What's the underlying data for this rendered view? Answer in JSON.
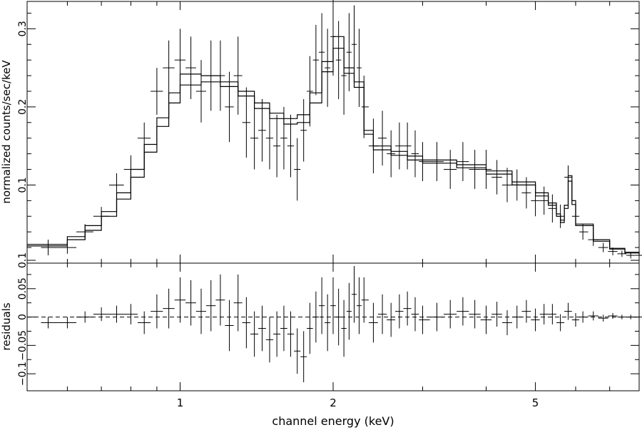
{
  "chart_data": [
    {
      "type": "line",
      "panel": "spectrum",
      "xlabel": "channel energy (keV)",
      "ylabel": "normalized counts/sec/keV",
      "xscale": "log",
      "xlim": [
        0.5,
        8.0
      ],
      "ylim": [
        0.0,
        0.335
      ],
      "yticks": [
        0.1,
        0.2,
        0.3
      ],
      "ytick_labels": [
        "0.1",
        "0.2",
        "0.3"
      ],
      "xticks": [
        1,
        2,
        5
      ],
      "xtick_labels": [
        "1",
        "2",
        "5"
      ],
      "series": [
        {
          "kind": "model-step",
          "x": [
            0.5,
            0.6,
            0.65,
            0.7,
            0.75,
            0.8,
            0.85,
            0.9,
            0.95,
            1.0,
            1.1,
            1.2,
            1.3,
            1.4,
            1.5,
            1.6,
            1.7,
            1.8,
            1.9,
            2.0,
            2.1,
            2.2,
            2.3,
            2.4,
            2.6,
            2.8,
            3.0,
            3.5,
            4.0,
            4.5,
            5.0,
            5.3,
            5.5,
            5.6,
            5.7,
            5.8,
            5.9,
            6.0,
            6.5,
            7.0,
            7.5,
            8.0
          ],
          "values": [
            0.022,
            0.03,
            0.042,
            0.06,
            0.082,
            0.11,
            0.142,
            0.175,
            0.205,
            0.228,
            0.232,
            0.226,
            0.214,
            0.198,
            0.185,
            0.178,
            0.18,
            0.205,
            0.245,
            0.275,
            0.243,
            0.225,
            0.165,
            0.145,
            0.138,
            0.132,
            0.128,
            0.122,
            0.114,
            0.1,
            0.086,
            0.074,
            0.06,
            0.052,
            0.07,
            0.105,
            0.075,
            0.048,
            0.028,
            0.018,
            0.013,
            0.011
          ]
        },
        {
          "kind": "model-step",
          "x": [
            0.5,
            0.6,
            0.65,
            0.7,
            0.75,
            0.8,
            0.85,
            0.9,
            0.95,
            1.0,
            1.1,
            1.2,
            1.3,
            1.4,
            1.5,
            1.6,
            1.7,
            1.8,
            1.9,
            2.0,
            2.1,
            2.2,
            2.3,
            2.4,
            2.6,
            2.8,
            3.0,
            3.5,
            4.0,
            4.5,
            5.0,
            5.3,
            5.5,
            5.6,
            5.7,
            5.8,
            5.9,
            6.0,
            6.5,
            7.0,
            7.5,
            8.0
          ],
          "values": [
            0.024,
            0.034,
            0.048,
            0.066,
            0.09,
            0.12,
            0.152,
            0.186,
            0.218,
            0.242,
            0.24,
            0.232,
            0.22,
            0.205,
            0.192,
            0.185,
            0.19,
            0.218,
            0.258,
            0.29,
            0.25,
            0.232,
            0.17,
            0.15,
            0.143,
            0.137,
            0.132,
            0.126,
            0.118,
            0.104,
            0.09,
            0.077,
            0.063,
            0.055,
            0.074,
            0.112,
            0.08,
            0.05,
            0.03,
            0.019,
            0.014,
            0.012
          ]
        }
      ],
      "data_points": {
        "x": [
          0.55,
          0.6,
          0.65,
          0.7,
          0.75,
          0.8,
          0.85,
          0.9,
          0.95,
          1.0,
          1.05,
          1.1,
          1.15,
          1.2,
          1.25,
          1.3,
          1.35,
          1.4,
          1.45,
          1.5,
          1.55,
          1.6,
          1.65,
          1.7,
          1.75,
          1.8,
          1.85,
          1.9,
          1.95,
          2.0,
          2.05,
          2.1,
          2.15,
          2.2,
          2.25,
          2.3,
          2.4,
          2.5,
          2.6,
          2.7,
          2.8,
          2.9,
          3.0,
          3.2,
          3.4,
          3.6,
          3.8,
          4.0,
          4.2,
          4.4,
          4.6,
          4.8,
          5.0,
          5.2,
          5.4,
          5.6,
          5.8,
          6.0,
          6.2,
          6.5,
          6.8,
          7.1,
          7.4,
          7.7,
          8.0
        ],
        "y": [
          0.02,
          0.02,
          0.04,
          0.06,
          0.1,
          0.12,
          0.16,
          0.22,
          0.25,
          0.26,
          0.25,
          0.22,
          0.24,
          0.24,
          0.2,
          0.24,
          0.18,
          0.16,
          0.17,
          0.16,
          0.15,
          0.16,
          0.15,
          0.12,
          0.17,
          0.22,
          0.26,
          0.27,
          0.25,
          0.29,
          0.26,
          0.24,
          0.27,
          0.28,
          0.25,
          0.2,
          0.15,
          0.16,
          0.14,
          0.15,
          0.15,
          0.14,
          0.13,
          0.13,
          0.12,
          0.13,
          0.12,
          0.12,
          0.11,
          0.1,
          0.1,
          0.09,
          0.08,
          0.08,
          0.07,
          0.06,
          0.11,
          0.06,
          0.04,
          0.03,
          0.02,
          0.015,
          0.012,
          0.01,
          0.01
        ],
        "yerr": [
          0.01,
          0.008,
          0.01,
          0.012,
          0.015,
          0.018,
          0.02,
          0.03,
          0.035,
          0.04,
          0.04,
          0.04,
          0.045,
          0.045,
          0.045,
          0.05,
          0.045,
          0.04,
          0.04,
          0.04,
          0.04,
          0.04,
          0.04,
          0.04,
          0.04,
          0.045,
          0.045,
          0.05,
          0.05,
          0.05,
          0.05,
          0.05,
          0.05,
          0.05,
          0.05,
          0.04,
          0.035,
          0.035,
          0.03,
          0.03,
          0.03,
          0.03,
          0.025,
          0.025,
          0.025,
          0.025,
          0.025,
          0.025,
          0.022,
          0.022,
          0.02,
          0.02,
          0.02,
          0.018,
          0.018,
          0.015,
          0.015,
          0.012,
          0.01,
          0.008,
          0.006,
          0.005,
          0.004,
          0.004,
          0.004
        ]
      }
    },
    {
      "type": "scatter",
      "panel": "residuals",
      "xlabel": "channel energy (keV)",
      "ylabel": "residuals",
      "xscale": "log",
      "xlim": [
        0.5,
        8.0
      ],
      "ylim": [
        -0.13,
        0.095
      ],
      "yticks": [
        -0.1,
        -0.05,
        0.0,
        0.05,
        0.1
      ],
      "ytick_labels": [
        "−0.1",
        "−0.05",
        "0",
        "0.05",
        "0.1"
      ],
      "zero_line": "dashed",
      "x": [
        0.55,
        0.6,
        0.65,
        0.7,
        0.75,
        0.8,
        0.85,
        0.9,
        0.95,
        1.0,
        1.05,
        1.1,
        1.15,
        1.2,
        1.25,
        1.3,
        1.35,
        1.4,
        1.45,
        1.5,
        1.55,
        1.6,
        1.65,
        1.7,
        1.75,
        1.8,
        1.85,
        1.9,
        1.95,
        2.0,
        2.05,
        2.1,
        2.15,
        2.2,
        2.25,
        2.3,
        2.4,
        2.5,
        2.6,
        2.7,
        2.8,
        2.9,
        3.0,
        3.2,
        3.4,
        3.6,
        3.8,
        4.0,
        4.2,
        4.4,
        4.6,
        4.8,
        5.0,
        5.2,
        5.4,
        5.6,
        5.8,
        6.0,
        6.2,
        6.5,
        6.8,
        7.1,
        7.4,
        7.7,
        8.0
      ],
      "values": [
        -0.01,
        -0.01,
        0.0,
        0.005,
        0.005,
        0.005,
        -0.01,
        0.01,
        0.015,
        0.03,
        0.025,
        0.01,
        0.02,
        0.03,
        -0.015,
        0.025,
        -0.01,
        -0.03,
        -0.02,
        -0.04,
        -0.03,
        -0.02,
        -0.03,
        -0.06,
        -0.07,
        -0.02,
        0.0,
        0.02,
        -0.01,
        0.02,
        0.0,
        -0.02,
        0.01,
        0.04,
        0.02,
        0.03,
        -0.01,
        0.005,
        -0.005,
        0.01,
        0.015,
        0.005,
        -0.005,
        0.0,
        0.005,
        0.01,
        0.005,
        -0.005,
        0.005,
        -0.01,
        0.0,
        0.01,
        -0.005,
        0.005,
        0.005,
        -0.01,
        0.01,
        -0.005,
        0.0,
        0.002,
        -0.002,
        0.002,
        0.0,
        0.0,
        0.0
      ],
      "yerr": [
        0.01,
        0.01,
        0.01,
        0.012,
        0.015,
        0.018,
        0.02,
        0.03,
        0.035,
        0.04,
        0.04,
        0.04,
        0.045,
        0.045,
        0.045,
        0.05,
        0.045,
        0.04,
        0.04,
        0.04,
        0.04,
        0.04,
        0.04,
        0.04,
        0.045,
        0.045,
        0.045,
        0.05,
        0.05,
        0.05,
        0.05,
        0.05,
        0.05,
        0.05,
        0.05,
        0.04,
        0.035,
        0.035,
        0.03,
        0.03,
        0.03,
        0.03,
        0.025,
        0.025,
        0.025,
        0.025,
        0.025,
        0.025,
        0.022,
        0.022,
        0.02,
        0.02,
        0.02,
        0.018,
        0.018,
        0.015,
        0.015,
        0.012,
        0.01,
        0.008,
        0.006,
        0.005,
        0.004,
        0.004,
        0.004
      ]
    }
  ]
}
